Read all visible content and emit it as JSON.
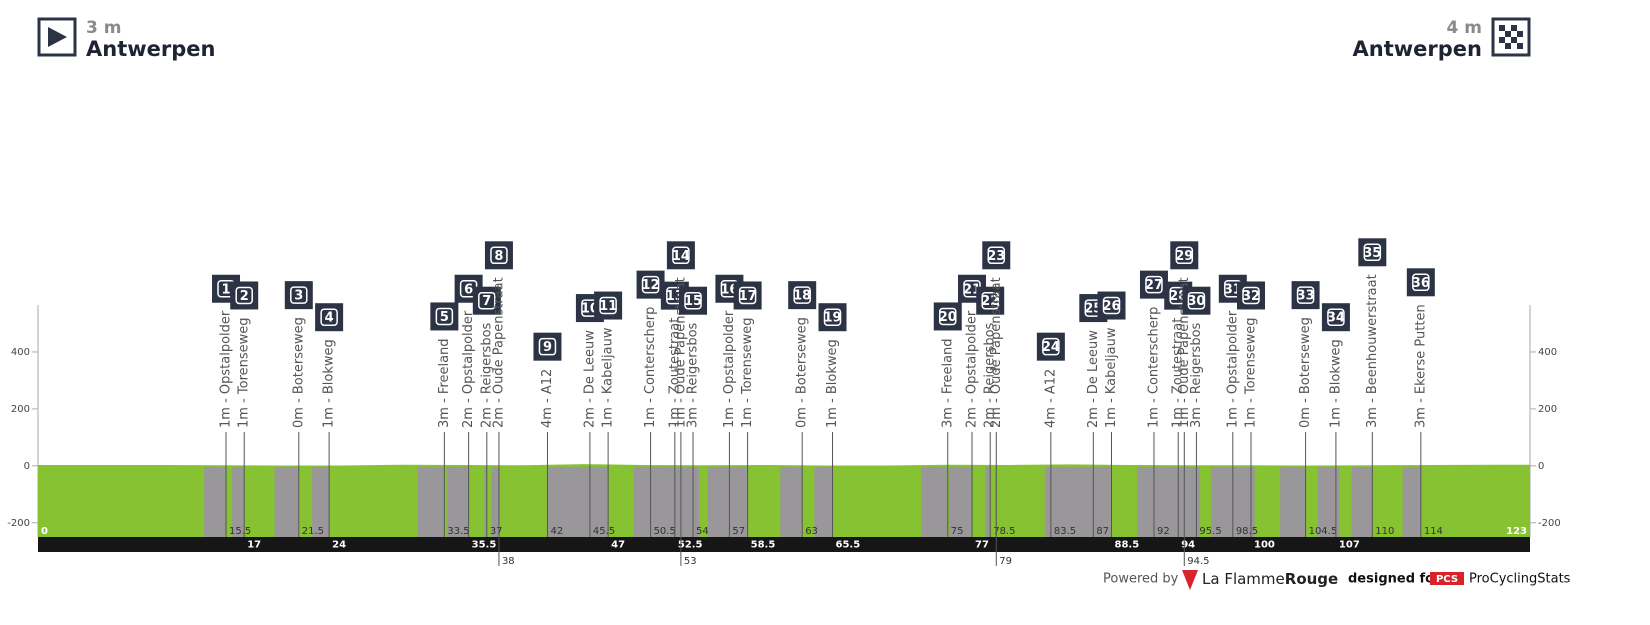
{
  "header": {
    "start": {
      "elevation_label": "3 m",
      "name": "Antwerpen"
    },
    "finish": {
      "elevation_label": "4 m",
      "name": "Antwerpen"
    }
  },
  "chart_data": {
    "type": "profile",
    "xlim": [
      0,
      123
    ],
    "ylim": [
      -250,
      565
    ],
    "yticks": [
      -200,
      0,
      200,
      400
    ],
    "x": [
      0,
      10,
      15,
      20,
      25,
      30,
      35,
      40,
      45,
      50,
      55,
      60,
      65,
      70,
      75,
      80,
      85,
      90,
      95,
      100,
      105,
      110,
      115,
      120,
      123
    ],
    "values": [
      3,
      3,
      2,
      1,
      1,
      4,
      3,
      2,
      6,
      3,
      2,
      3,
      1,
      1,
      4,
      3,
      5,
      3,
      2,
      2,
      1,
      2,
      3,
      4,
      4
    ],
    "color": "#86c232",
    "sector_color": "#9a979b",
    "sectors": [
      [
        13.7,
        15.5
      ],
      [
        16,
        17
      ],
      [
        19.5,
        21.5
      ],
      [
        22.6,
        24
      ],
      [
        31.3,
        33.5
      ],
      [
        33.7,
        35.5
      ],
      [
        36.8,
        37
      ],
      [
        37.4,
        38
      ],
      [
        42,
        47
      ],
      [
        49.1,
        54.5
      ],
      [
        55.2,
        58.5
      ],
      [
        61.2,
        63
      ],
      [
        64,
        65.5
      ],
      [
        72.8,
        75
      ],
      [
        75.1,
        77
      ],
      [
        78.1,
        78.5
      ],
      [
        78.9,
        79
      ],
      [
        83,
        88.5
      ],
      [
        90.6,
        95.8
      ],
      [
        96.7,
        100.3
      ],
      [
        102.4,
        104.5
      ],
      [
        105.5,
        107.3
      ],
      [
        108.3,
        110
      ],
      [
        112.5,
        114
      ]
    ],
    "climbs": [
      {
        "number": 1,
        "label": "1m - Opstalpolder",
        "km": 15.5
      },
      {
        "number": 2,
        "label": "1m - Torenseweg",
        "km": 17
      },
      {
        "number": 3,
        "label": "0m - Boterseweg",
        "km": 21.5
      },
      {
        "number": 4,
        "label": "1m - Blokweg",
        "km": 24
      },
      {
        "number": 5,
        "label": "3m - Freeland",
        "km": 33.5
      },
      {
        "number": 6,
        "label": "2m - Opstalpolder",
        "km": 35.5
      },
      {
        "number": 7,
        "label": "2m - Reigersbos",
        "km": 37
      },
      {
        "number": 8,
        "label": "2m - Oude Papenstraat",
        "km": 38
      },
      {
        "number": 9,
        "label": "4m - A12",
        "km": 42
      },
      {
        "number": 10,
        "label": "2m - De Leeuw",
        "km": 45.5
      },
      {
        "number": 11,
        "label": "1m - Kabeljauw",
        "km": 47
      },
      {
        "number": 12,
        "label": "1m - Conterscherp",
        "km": 50.5
      },
      {
        "number": 13,
        "label": "1m - Zoutestraat",
        "km": 52.5
      },
      {
        "number": 14,
        "label": "1m - Oude Papenstraat",
        "km": 53
      },
      {
        "number": 15,
        "label": "3m - Reigersbos",
        "km": 54
      },
      {
        "number": 16,
        "label": "1m - Opstalpolder",
        "km": 57
      },
      {
        "number": 17,
        "label": "1m - Torenseweg",
        "km": 58.5
      },
      {
        "number": 18,
        "label": "0m - Boterseweg",
        "km": 63
      },
      {
        "number": 19,
        "label": "1m - Blokweg",
        "km": 65.5
      },
      {
        "number": 20,
        "label": "3m - Freeland",
        "km": 75
      },
      {
        "number": 21,
        "label": "2m - Opstalpolder",
        "km": 77
      },
      {
        "number": 22,
        "label": "2m - Reigersbos",
        "km": 78.5
      },
      {
        "number": 23,
        "label": "2m - Oude Papenstraat",
        "km": 79
      },
      {
        "number": 24,
        "label": "4m - A12",
        "km": 83.5
      },
      {
        "number": 25,
        "label": "2m - De Leeuw",
        "km": 87
      },
      {
        "number": 26,
        "label": "1m - Kabeljauw",
        "km": 88.5
      },
      {
        "number": 27,
        "label": "1m - Conterscherp",
        "km": 92
      },
      {
        "number": 28,
        "label": "1m - Zoutestraat",
        "km": 94
      },
      {
        "number": 29,
        "label": "1m - Oude Papenstraat",
        "km": 94.5
      },
      {
        "number": 30,
        "label": "3m - Reigersbos",
        "km": 95.5
      },
      {
        "number": 31,
        "label": "1m - Opstalpolder",
        "km": 98.5
      },
      {
        "number": 32,
        "label": "1m - Torenseweg",
        "km": 100
      },
      {
        "number": 33,
        "label": "0m - Boterseweg",
        "km": 104.5
      },
      {
        "number": 34,
        "label": "1m - Blokweg",
        "km": 107
      },
      {
        "number": 35,
        "label": "3m - Beenhouwerstraat",
        "km": 110
      },
      {
        "number": 36,
        "label": "3m - Ekerse Putten",
        "km": 114
      }
    ]
  },
  "footer": {
    "powered_by": "Powered by",
    "brand_a": "La Flamme",
    "brand_b": "Rouge",
    "designed_for": "designed for",
    "pcs": "PCS",
    "site": "ProCyclingStats"
  }
}
